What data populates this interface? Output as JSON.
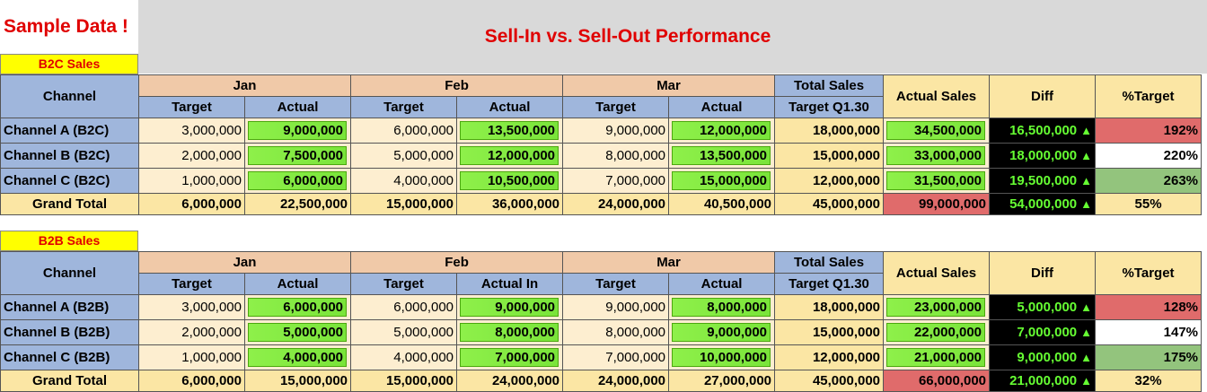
{
  "sample_label": "Sample Data !",
  "title": "Sell-In vs. Sell-Out Performance",
  "colors": {
    "title": "#e00000",
    "actual_bar": "#7ae43a",
    "diff_bg": "#000000",
    "diff_text": "#66ff33",
    "over_red": "#e06b6b",
    "over_green": "#93c47d"
  },
  "icons": {
    "diff_up": "up-triangle-icon"
  },
  "up_arrow": "▲",
  "sections": [
    {
      "label": "B2C Sales",
      "headers": {
        "channel": "Channel",
        "jan": "Jan",
        "feb": "Feb",
        "mar": "Mar",
        "target": "Target",
        "actual": "Actual",
        "feb_actual": "Actual",
        "total_1": "Total Sales",
        "total_2": "Target Q1.30",
        "actual_sales": "Actual Sales",
        "diff": "Diff",
        "pct": "%Target"
      },
      "rows": [
        {
          "name": "Channel A (B2C)",
          "jan_t": "3,000,000",
          "jan_a": "9,000,000",
          "feb_t": "6,000,000",
          "feb_a": "13,500,000",
          "mar_t": "9,000,000",
          "mar_a": "12,000,000",
          "total": "18,000,000",
          "actual_sales": "34,500,000",
          "diff": "16,500,000",
          "pct": "192%"
        },
        {
          "name": "Channel B (B2C)",
          "jan_t": "2,000,000",
          "jan_a": "7,500,000",
          "feb_t": "5,000,000",
          "feb_a": "12,000,000",
          "mar_t": "8,000,000",
          "mar_a": "13,500,000",
          "total": "15,000,000",
          "actual_sales": "33,000,000",
          "diff": "18,000,000",
          "pct": "220%"
        },
        {
          "name": "Channel C (B2C)",
          "jan_t": "1,000,000",
          "jan_a": "6,000,000",
          "feb_t": "4,000,000",
          "feb_a": "10,500,000",
          "mar_t": "7,000,000",
          "mar_a": "15,000,000",
          "total": "12,000,000",
          "actual_sales": "31,500,000",
          "diff": "19,500,000",
          "pct": "263%"
        }
      ],
      "grand": {
        "name": "Grand Total",
        "jan_t": "6,000,000",
        "jan_a": "22,500,000",
        "feb_t": "15,000,000",
        "feb_a": "36,000,000",
        "mar_t": "24,000,000",
        "mar_a": "40,500,000",
        "total": "45,000,000",
        "actual_sales": "99,000,000",
        "diff": "54,000,000",
        "pct": "55%"
      }
    },
    {
      "label": "B2B Sales",
      "headers": {
        "channel": "Channel",
        "jan": "Jan",
        "feb": "Feb",
        "mar": "Mar",
        "target": "Target",
        "actual": "Actual",
        "feb_actual": "Actual In",
        "total_1": "Total Sales",
        "total_2": "Target Q1.30",
        "actual_sales": "Actual Sales",
        "diff": "Diff",
        "pct": "%Target"
      },
      "rows": [
        {
          "name": "Channel A (B2B)",
          "jan_t": "3,000,000",
          "jan_a": "6,000,000",
          "feb_t": "6,000,000",
          "feb_a": "9,000,000",
          "mar_t": "9,000,000",
          "mar_a": "8,000,000",
          "total": "18,000,000",
          "actual_sales": "23,000,000",
          "diff": "5,000,000",
          "pct": "128%"
        },
        {
          "name": "Channel B (B2B)",
          "jan_t": "2,000,000",
          "jan_a": "5,000,000",
          "feb_t": "5,000,000",
          "feb_a": "8,000,000",
          "mar_t": "8,000,000",
          "mar_a": "9,000,000",
          "total": "15,000,000",
          "actual_sales": "22,000,000",
          "diff": "7,000,000",
          "pct": "147%"
        },
        {
          "name": "Channel C (B2B)",
          "jan_t": "1,000,000",
          "jan_a": "4,000,000",
          "feb_t": "4,000,000",
          "feb_a": "7,000,000",
          "mar_t": "7,000,000",
          "mar_a": "10,000,000",
          "total": "12,000,000",
          "actual_sales": "21,000,000",
          "diff": "9,000,000",
          "pct": "175%"
        }
      ],
      "grand": {
        "name": "Grand Total",
        "jan_t": "6,000,000",
        "jan_a": "15,000,000",
        "feb_t": "15,000,000",
        "feb_a": "24,000,000",
        "mar_t": "24,000,000",
        "mar_a": "27,000,000",
        "total": "45,000,000",
        "actual_sales": "66,000,000",
        "diff": "21,000,000",
        "pct": "32%"
      }
    }
  ]
}
